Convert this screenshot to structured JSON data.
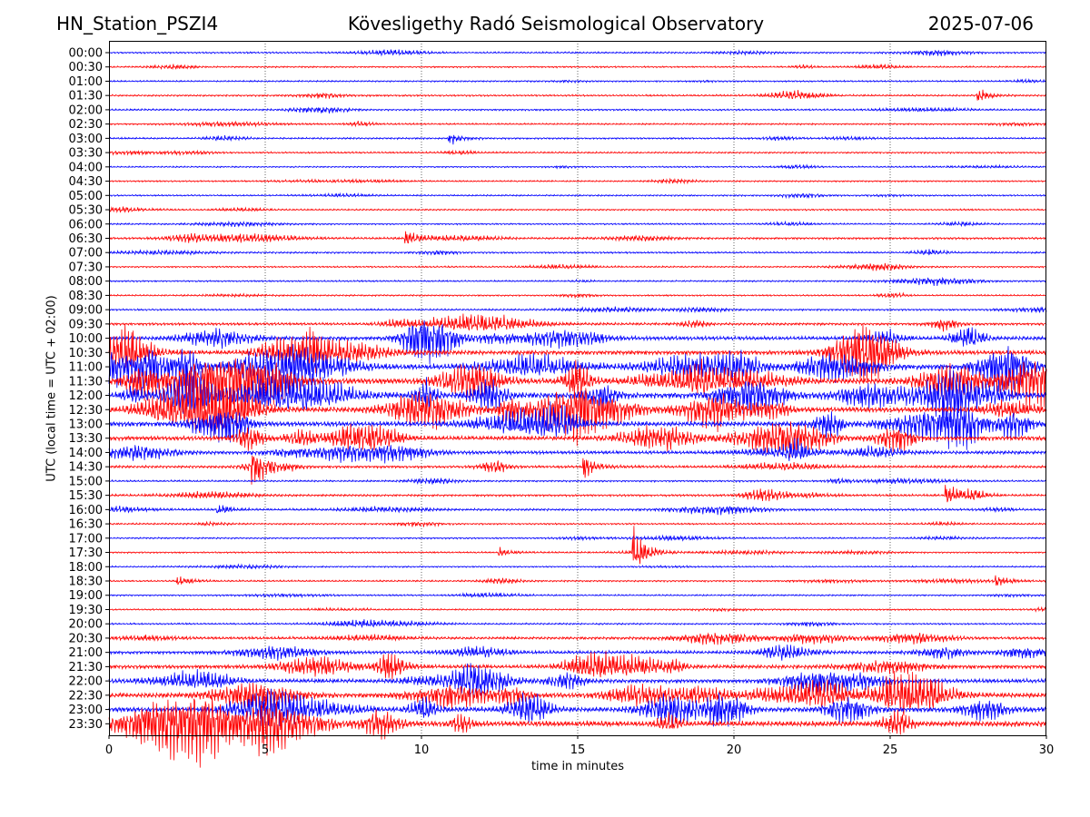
{
  "header": {
    "left": "HN_Station_PSZI4",
    "center": "Kövesligethy Radó Seismological Observatory",
    "right": "2025-07-06"
  },
  "chart_data": {
    "type": "line",
    "title": "Kövesligethy Radó Seismological Observatory",
    "xlabel": "time in minutes",
    "ylabel": "UTC (local time = UTC + 02:00)",
    "xlim": [
      0,
      30
    ],
    "x_ticks": [
      "0",
      "5",
      "10",
      "15",
      "20",
      "25",
      "30"
    ],
    "vertical_gridlines_at": [
      5,
      10,
      15,
      20,
      25
    ],
    "row_labels": [
      "00:00",
      "00:30",
      "01:00",
      "01:30",
      "02:00",
      "02:30",
      "03:00",
      "03:30",
      "04:00",
      "04:30",
      "05:00",
      "05:30",
      "06:00",
      "06:30",
      "07:00",
      "07:30",
      "08:00",
      "08:30",
      "09:00",
      "09:30",
      "10:00",
      "10:30",
      "11:00",
      "11:30",
      "12:00",
      "12:30",
      "13:00",
      "13:30",
      "14:00",
      "14:30",
      "15:00",
      "15:30",
      "16:00",
      "16:30",
      "17:00",
      "17:30",
      "18:00",
      "18:30",
      "19:00",
      "19:30",
      "20:00",
      "20:30",
      "21:00",
      "21:30",
      "22:00",
      "22:30",
      "23:00",
      "23:30"
    ],
    "row_colors": [
      "#0000ff",
      "#ff0000"
    ],
    "row_activity": [
      0.12,
      0.1,
      0.1,
      0.14,
      0.14,
      0.12,
      0.14,
      0.12,
      0.08,
      0.09,
      0.1,
      0.1,
      0.1,
      0.22,
      0.14,
      0.1,
      0.1,
      0.1,
      0.14,
      0.3,
      0.55,
      0.7,
      0.95,
      1.0,
      1.0,
      0.9,
      0.8,
      0.7,
      0.45,
      0.3,
      0.14,
      0.22,
      0.22,
      0.12,
      0.1,
      0.1,
      0.08,
      0.12,
      0.1,
      0.1,
      0.12,
      0.32,
      0.42,
      0.55,
      0.6,
      0.75,
      0.82,
      0.95
    ],
    "events": [
      {
        "row": "17:30",
        "minute": 16.8,
        "amplitude": 1.0
      },
      {
        "row": "15:30",
        "minute": 26.8,
        "amplitude": 0.45
      },
      {
        "row": "14:30",
        "minute": 15.2,
        "amplitude": 0.5
      },
      {
        "row": "14:30",
        "minute": 4.6,
        "amplitude": 0.5
      },
      {
        "row": "01:30",
        "minute": 27.8,
        "amplitude": 0.3
      },
      {
        "row": "03:00",
        "minute": 10.9,
        "amplitude": 0.25
      },
      {
        "row": "18:30",
        "minute": 2.2,
        "amplitude": 0.22
      },
      {
        "row": "18:30",
        "minute": 28.4,
        "amplitude": 0.25
      },
      {
        "row": "17:30",
        "minute": 12.5,
        "amplitude": 0.18
      },
      {
        "row": "06:30",
        "minute": 9.5,
        "amplitude": 0.35
      },
      {
        "row": "16:00",
        "minute": 3.5,
        "amplitude": 0.2
      },
      {
        "row": "22:30",
        "minute": 26.3,
        "amplitude": 0.3
      }
    ]
  }
}
